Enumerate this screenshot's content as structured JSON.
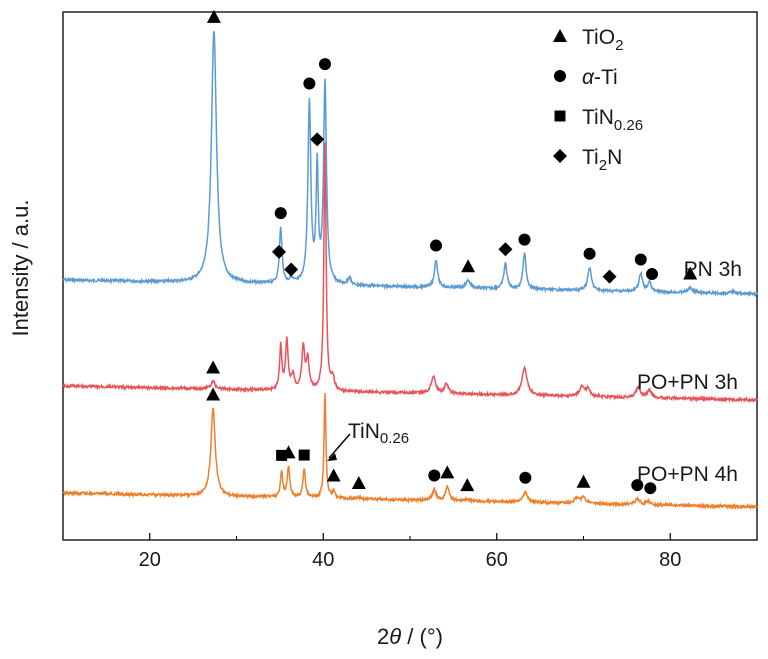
{
  "chart_data": {
    "type": "line",
    "xlabel_prefix": "2",
    "xlabel_theta": "θ",
    "xlabel_suffix": " / (°)",
    "ylabel": "Intensity / a.u.",
    "xlim": [
      10,
      90
    ],
    "xticks": [
      20,
      40,
      60,
      80
    ],
    "colors": {
      "PN 3h": "#5b9bd5",
      "PO+PN 3h": "#e8545a",
      "PO+PN 4h": "#f07f2a",
      "marker": "#000000"
    },
    "legend": [
      {
        "symbol": "triangle",
        "label": "TiO",
        "sub": "2",
        "after": ""
      },
      {
        "symbol": "circle",
        "label": "α-Ti",
        "sub": "",
        "after": ""
      },
      {
        "symbol": "square",
        "label": "TiN",
        "sub": "0.26",
        "after": ""
      },
      {
        "symbol": "diamond",
        "label": "Ti",
        "sub": "2",
        "after": "N"
      }
    ],
    "series": [
      {
        "name": "PN 3h",
        "peaks": [
          {
            "x": 27.4,
            "h": 1.0,
            "w": 0.35
          },
          {
            "x": 35.1,
            "h": 0.22,
            "w": 0.18
          },
          {
            "x": 36.3,
            "h": 0.02,
            "w": 0.2
          },
          {
            "x": 38.4,
            "h": 0.72,
            "w": 0.2
          },
          {
            "x": 39.3,
            "h": 0.45,
            "w": 0.15
          },
          {
            "x": 40.2,
            "h": 0.8,
            "w": 0.2
          },
          {
            "x": 43.0,
            "h": 0.03,
            "w": 0.2
          },
          {
            "x": 53.0,
            "h": 0.11,
            "w": 0.22
          },
          {
            "x": 56.7,
            "h": 0.03,
            "w": 0.3
          },
          {
            "x": 61.0,
            "h": 0.1,
            "w": 0.22
          },
          {
            "x": 63.2,
            "h": 0.14,
            "w": 0.22
          },
          {
            "x": 70.7,
            "h": 0.09,
            "w": 0.25
          },
          {
            "x": 76.6,
            "h": 0.07,
            "w": 0.25
          },
          {
            "x": 77.6,
            "h": 0.04,
            "w": 0.2
          },
          {
            "x": 82.3,
            "h": 0.02,
            "w": 0.3
          },
          {
            "x": 87.3,
            "h": 0.01,
            "w": 0.3
          }
        ],
        "markers": [
          {
            "x": 27.4,
            "symbol": "triangle"
          },
          {
            "x": 35.1,
            "symbol": "circle"
          },
          {
            "x": 34.9,
            "symbol": "diamond",
            "low": true
          },
          {
            "x": 36.3,
            "symbol": "diamond",
            "low": true
          },
          {
            "x": 38.4,
            "symbol": "circle"
          },
          {
            "x": 39.3,
            "symbol": "diamond"
          },
          {
            "x": 40.2,
            "symbol": "circle"
          },
          {
            "x": 53.0,
            "symbol": "circle"
          },
          {
            "x": 56.7,
            "symbol": "triangle"
          },
          {
            "x": 61.0,
            "symbol": "diamond"
          },
          {
            "x": 63.2,
            "symbol": "circle"
          },
          {
            "x": 70.7,
            "symbol": "circle"
          },
          {
            "x": 73.0,
            "symbol": "diamond"
          },
          {
            "x": 76.6,
            "symbol": "circle"
          },
          {
            "x": 77.9,
            "symbol": "circle"
          },
          {
            "x": 82.3,
            "symbol": "triangle"
          }
        ]
      },
      {
        "name": "PO+PN 3h",
        "peaks": [
          {
            "x": 27.3,
            "h": 0.03,
            "w": 0.3
          },
          {
            "x": 35.1,
            "h": 0.18,
            "w": 0.15
          },
          {
            "x": 35.8,
            "h": 0.2,
            "w": 0.18
          },
          {
            "x": 36.5,
            "h": 0.06,
            "w": 0.2
          },
          {
            "x": 37.7,
            "h": 0.17,
            "w": 0.2
          },
          {
            "x": 38.2,
            "h": 0.12,
            "w": 0.2
          },
          {
            "x": 40.2,
            "h": 1.0,
            "w": 0.15
          },
          {
            "x": 41.1,
            "h": 0.05,
            "w": 0.2
          },
          {
            "x": 52.7,
            "h": 0.07,
            "w": 0.3
          },
          {
            "x": 54.2,
            "h": 0.04,
            "w": 0.25
          },
          {
            "x": 63.2,
            "h": 0.11,
            "w": 0.35
          },
          {
            "x": 69.8,
            "h": 0.04,
            "w": 0.3
          },
          {
            "x": 70.5,
            "h": 0.03,
            "w": 0.3
          },
          {
            "x": 76.3,
            "h": 0.04,
            "w": 0.3
          },
          {
            "x": 77.6,
            "h": 0.03,
            "w": 0.3
          }
        ],
        "markers": [
          {
            "x": 27.3,
            "symbol": "triangle"
          }
        ]
      },
      {
        "name": "PO+PN 4h",
        "peaks": [
          {
            "x": 27.3,
            "h": 0.5,
            "w": 0.3
          },
          {
            "x": 35.2,
            "h": 0.15,
            "w": 0.15
          },
          {
            "x": 36.0,
            "h": 0.17,
            "w": 0.18
          },
          {
            "x": 37.8,
            "h": 0.16,
            "w": 0.18
          },
          {
            "x": 40.2,
            "h": 0.6,
            "w": 0.13
          },
          {
            "x": 41.2,
            "h": 0.04,
            "w": 0.2
          },
          {
            "x": 44.1,
            "h": 0.01,
            "w": 0.2
          },
          {
            "x": 52.8,
            "h": 0.06,
            "w": 0.25
          },
          {
            "x": 54.3,
            "h": 0.08,
            "w": 0.25
          },
          {
            "x": 56.6,
            "h": 0.01,
            "w": 0.3
          },
          {
            "x": 63.3,
            "h": 0.06,
            "w": 0.3
          },
          {
            "x": 69.2,
            "h": 0.03,
            "w": 0.3
          },
          {
            "x": 70.0,
            "h": 0.04,
            "w": 0.3
          },
          {
            "x": 76.2,
            "h": 0.03,
            "w": 0.3
          },
          {
            "x": 77.5,
            "h": 0.02,
            "w": 0.3
          }
        ],
        "markers": [
          {
            "x": 27.3,
            "symbol": "triangle"
          },
          {
            "x": 35.2,
            "symbol": "square"
          },
          {
            "x": 36.0,
            "symbol": "triangle"
          },
          {
            "x": 37.8,
            "symbol": "square"
          },
          {
            "x": 41.2,
            "symbol": "triangle"
          },
          {
            "x": 44.1,
            "symbol": "triangle"
          },
          {
            "x": 52.8,
            "symbol": "circle"
          },
          {
            "x": 54.3,
            "symbol": "triangle"
          },
          {
            "x": 56.6,
            "symbol": "triangle"
          },
          {
            "x": 63.3,
            "symbol": "circle"
          },
          {
            "x": 70.0,
            "symbol": "triangle"
          },
          {
            "x": 76.2,
            "symbol": "circle"
          },
          {
            "x": 77.7,
            "symbol": "circle"
          }
        ]
      }
    ],
    "annotation": {
      "label": "TiN",
      "sub": "0.26",
      "x": 40.2,
      "series": "PO+PN 4h"
    }
  }
}
